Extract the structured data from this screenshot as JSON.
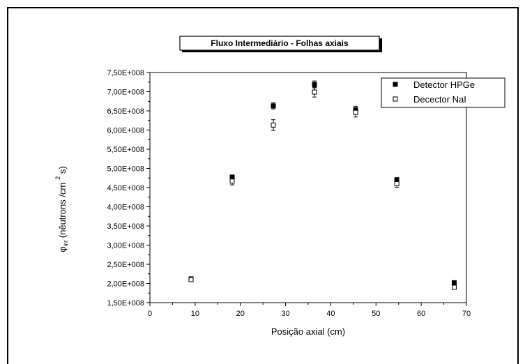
{
  "chart_data": {
    "type": "scatter",
    "title": "Fluxo Intermediário - Folhas axiais",
    "xlabel": "Posição axial (cm)",
    "ylabel": {
      "phi": "φ",
      "sub": "int",
      "main": " (nêutrons /cm",
      "sup": "2",
      "tail": " s)"
    },
    "xlim": [
      0,
      70
    ],
    "ylim": [
      150000000,
      750000000
    ],
    "x_ticks": [
      0,
      10,
      20,
      30,
      40,
      50,
      60,
      70
    ],
    "y_ticks": [
      150000000,
      200000000,
      250000000,
      300000000,
      350000000,
      400000000,
      450000000,
      500000000,
      550000000,
      600000000,
      650000000,
      700000000,
      750000000
    ],
    "y_tick_labels": [
      "1,50E+008",
      "2,00E+008",
      "2,50E+008",
      "3,00E+008",
      "3,50E+008",
      "4,00E+008",
      "4,50E+008",
      "5,00E+008",
      "5,50E+008",
      "6,00E+008",
      "6,50E+008",
      "7,00E+008",
      "7,50E+008"
    ],
    "legend_position": "top-right",
    "grid": false,
    "series": [
      {
        "name": "Detector HPGe",
        "marker": "filled-square",
        "color": "#000000",
        "x": [
          9.1,
          18.2,
          27.3,
          36.4,
          45.5,
          54.6,
          67.3
        ],
        "y": [
          212000000,
          477000000,
          663000000,
          719000000,
          653000000,
          470000000,
          202000000
        ],
        "err": [
          4000000,
          6000000,
          8000000,
          9000000,
          9000000,
          6000000,
          3000000
        ]
      },
      {
        "name": "Decector NaI",
        "marker": "open-square",
        "color": "#000000",
        "x": [
          9.1,
          18.2,
          27.3,
          36.4,
          45.5,
          54.6,
          67.3
        ],
        "y": [
          210000000,
          467000000,
          613000000,
          699000000,
          646000000,
          460000000,
          190000000
        ],
        "err": [
          4000000,
          10000000,
          14000000,
          13000000,
          12000000,
          9000000,
          3000000
        ]
      }
    ]
  }
}
